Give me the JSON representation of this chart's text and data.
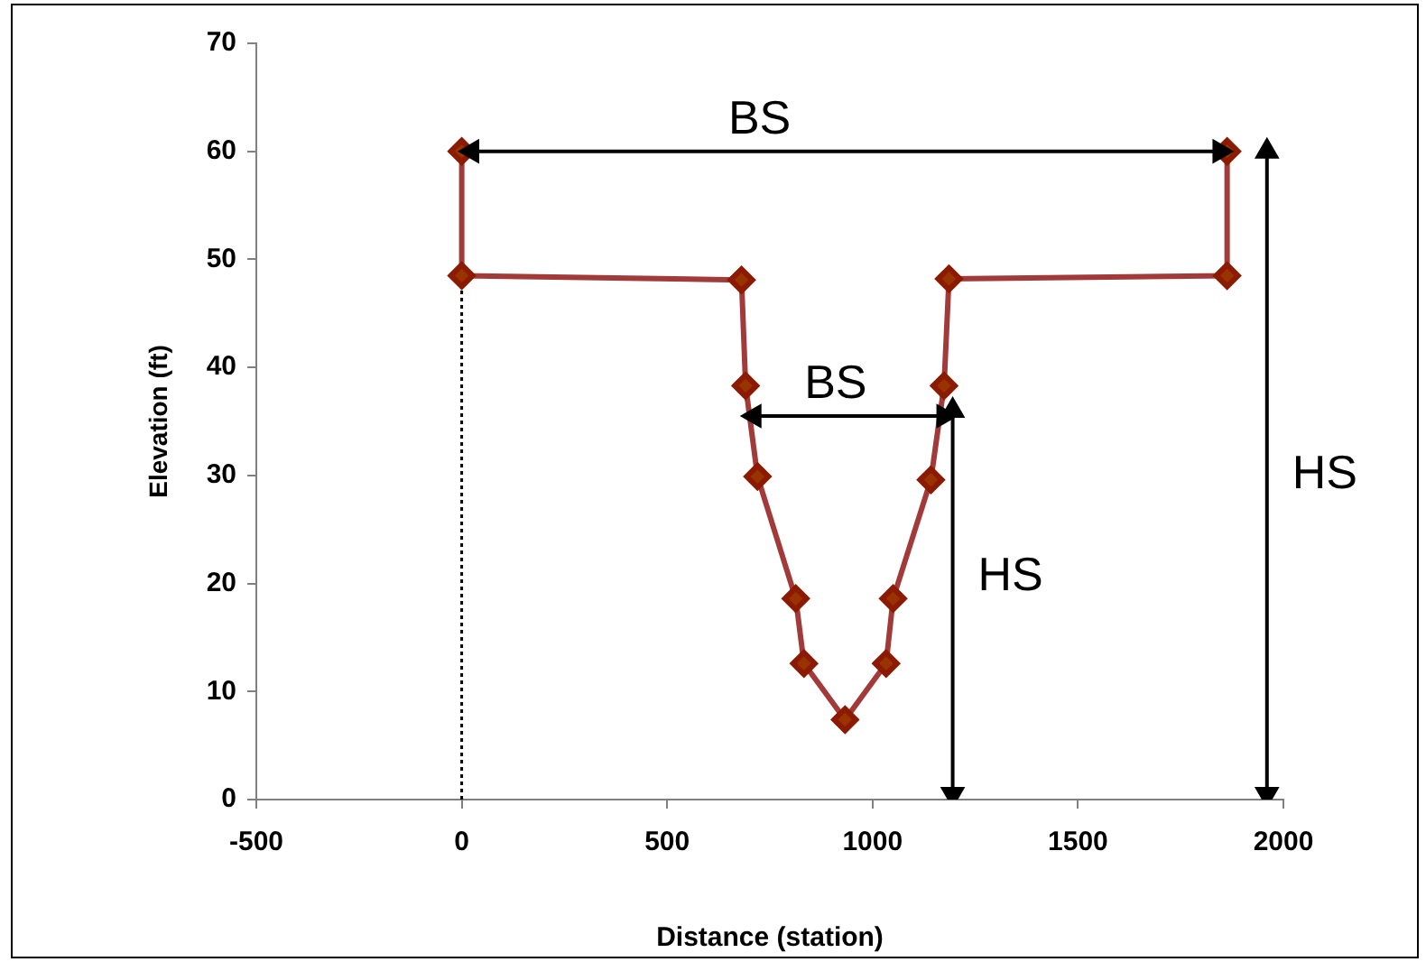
{
  "chart_data": {
    "type": "line",
    "xlabel": "Distance (station)",
    "ylabel": "Elevation (ft)",
    "xlim": [
      -500,
      2000
    ],
    "xticks": [
      -500,
      0,
      500,
      1000,
      1500,
      2000
    ],
    "ylim": [
      0,
      70
    ],
    "yticks": [
      0,
      10,
      20,
      30,
      40,
      50,
      60,
      70
    ],
    "grid": false,
    "series": [
      {
        "x": [
          0,
          0,
          681,
          691,
          720,
          813,
          833,
          933,
          1033,
          1050,
          1142,
          1174,
          1186,
          1863,
          1863
        ],
        "values": [
          60,
          48.5,
          48.1,
          38.3,
          29.9,
          18.6,
          12.6,
          7.4,
          12.6,
          18.6,
          29.6,
          38.3,
          48.2,
          48.5,
          60
        ],
        "color": "#a33a3a",
        "marker": "diamond",
        "line_style": "solid"
      },
      {
        "x": [
          0,
          0
        ],
        "values": [
          0,
          48.5
        ],
        "color": "#000000",
        "line_style": "dotted"
      },
      {
        "x": [
          25,
          1845
        ],
        "values": [
          60,
          60
        ],
        "color": "#000000",
        "marker": "triangle",
        "line_style": "solid"
      },
      {
        "x": [
          712,
          1173
        ],
        "values": [
          35.5,
          35.5
        ],
        "color": "#000000",
        "marker": "triangle",
        "line_style": "solid"
      },
      {
        "x": [
          1195,
          1195
        ],
        "values": [
          0.5,
          36
        ],
        "color": "#000000",
        "marker": "triangle",
        "line_style": "solid"
      },
      {
        "x": [
          1960,
          1960
        ],
        "values": [
          0.5,
          60
        ],
        "color": "#000000",
        "marker": "triangle",
        "line_style": "solid"
      }
    ],
    "annotations": [
      {
        "text": "BS",
        "x": 725,
        "y": 60
      },
      {
        "text": "BS",
        "x": 910,
        "y": 35.5
      },
      {
        "text": "HS",
        "x": 1195,
        "y": 20.6
      },
      {
        "text": "HS",
        "x": 1960,
        "y": 30
      }
    ]
  }
}
